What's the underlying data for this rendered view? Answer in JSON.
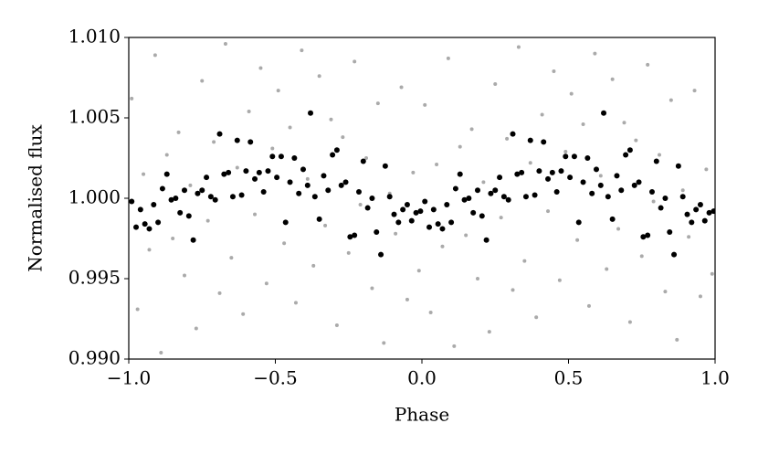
{
  "chart_data": {
    "type": "scatter",
    "xlabel": "Phase",
    "ylabel": "Normalised flux",
    "xlim": [
      -1.0,
      1.0
    ],
    "ylim": [
      0.99,
      1.01
    ],
    "xticks": [
      {
        "value": -1.0,
        "label": "−1.0"
      },
      {
        "value": -0.5,
        "label": "−0.5"
      },
      {
        "value": 0.0,
        "label": "0.0"
      },
      {
        "value": 0.5,
        "label": "0.5"
      },
      {
        "value": 1.0,
        "label": "1.0"
      }
    ],
    "yticks": [
      {
        "value": 0.99,
        "label": "0.990"
      },
      {
        "value": 0.995,
        "label": "0.995"
      },
      {
        "value": 1.0,
        "label": "1.000"
      },
      {
        "value": 1.005,
        "label": "1.005"
      },
      {
        "value": 1.01,
        "label": "1.010"
      }
    ],
    "series": [
      {
        "color": "#aaaaaa",
        "size": 2,
        "x": [
          -0.99,
          -0.97,
          -0.95,
          -0.93,
          -0.91,
          -0.89,
          -0.87,
          -0.85,
          -0.83,
          -0.81,
          -0.79,
          -0.77,
          -0.75,
          -0.73,
          -0.71,
          -0.69,
          -0.67,
          -0.65,
          -0.63,
          -0.61,
          -0.59,
          -0.57,
          -0.55,
          -0.53,
          -0.51,
          -0.49,
          -0.47,
          -0.45,
          -0.43,
          -0.41,
          -0.39,
          -0.37,
          -0.35,
          -0.33,
          -0.31,
          -0.29,
          -0.27,
          -0.25,
          -0.23,
          -0.21,
          -0.19,
          -0.17,
          -0.15,
          -0.13,
          -0.11,
          -0.09,
          -0.07,
          -0.05,
          -0.03,
          -0.01,
          0.01,
          0.03,
          0.05,
          0.07,
          0.09,
          0.11,
          0.13,
          0.15,
          0.17,
          0.19,
          0.21,
          0.23,
          0.25,
          0.27,
          0.29,
          0.31,
          0.33,
          0.35,
          0.37,
          0.39,
          0.41,
          0.43,
          0.45,
          0.47,
          0.49,
          0.51,
          0.53,
          0.55,
          0.57,
          0.59,
          0.61,
          0.63,
          0.65,
          0.67,
          0.69,
          0.71,
          0.73,
          0.75,
          0.77,
          0.79,
          0.81,
          0.83,
          0.85,
          0.87,
          0.89,
          0.91,
          0.93,
          0.95,
          0.97,
          0.99
        ],
        "values": [
          1.0062,
          0.9931,
          1.0015,
          0.9968,
          1.0089,
          0.9904,
          1.0027,
          0.9975,
          1.0041,
          0.9952,
          1.0008,
          0.9919,
          1.0073,
          0.9986,
          1.0035,
          0.9941,
          1.0096,
          0.9963,
          1.0019,
          0.9928,
          1.0054,
          0.999,
          1.0081,
          0.9947,
          1.0031,
          1.0067,
          0.9972,
          1.0044,
          0.9935,
          1.0092,
          1.0012,
          0.9958,
          1.0076,
          0.9983,
          1.0049,
          0.9921,
          1.0038,
          0.9966,
          1.0085,
          0.9996,
          1.0025,
          0.9944,
          1.0059,
          0.991,
          1.0003,
          0.9978,
          1.0069,
          0.9937,
          1.0016,
          0.9955,
          1.0058,
          0.9929,
          1.0021,
          0.997,
          1.0087,
          0.9908,
          1.0032,
          0.9977,
          1.0043,
          0.995,
          1.001,
          0.9917,
          1.0071,
          0.9988,
          1.0037,
          0.9943,
          1.0094,
          0.9961,
          1.0022,
          0.9926,
          1.0052,
          0.9992,
          1.0079,
          0.9949,
          1.0029,
          1.0065,
          0.9974,
          1.0046,
          0.9933,
          1.009,
          1.0014,
          0.9956,
          1.0074,
          0.9981,
          1.0047,
          0.9923,
          1.0036,
          0.9964,
          1.0083,
          0.9998,
          1.0027,
          0.9942,
          1.0061,
          0.9912,
          1.0005,
          0.9976,
          1.0067,
          0.9939,
          1.0018,
          0.9953
        ]
      },
      {
        "color": "#000000",
        "size": 3,
        "x": [
          -0.99,
          -0.975,
          -0.96,
          -0.945,
          -0.93,
          -0.915,
          -0.9,
          -0.885,
          -0.87,
          -0.855,
          -0.84,
          -0.825,
          -0.81,
          -0.795,
          -0.78,
          -0.765,
          -0.75,
          -0.735,
          -0.72,
          -0.705,
          -0.69,
          -0.675,
          -0.66,
          -0.645,
          -0.63,
          -0.615,
          -0.6,
          -0.585,
          -0.57,
          -0.555,
          -0.54,
          -0.525,
          -0.51,
          -0.495,
          -0.48,
          -0.465,
          -0.45,
          -0.435,
          -0.42,
          -0.405,
          -0.39,
          -0.38,
          -0.365,
          -0.35,
          -0.335,
          -0.32,
          -0.305,
          -0.29,
          -0.275,
          -0.26,
          -0.245,
          -0.23,
          -0.215,
          -0.2,
          -0.185,
          -0.17,
          -0.155,
          -0.14,
          -0.125,
          -0.11,
          -0.095,
          -0.08,
          -0.065,
          -0.05,
          -0.035,
          -0.02,
          -0.005,
          0.01,
          0.025,
          0.04,
          0.055,
          0.07,
          0.085,
          0.1,
          0.115,
          0.13,
          0.145,
          0.16,
          0.175,
          0.19,
          0.205,
          0.22,
          0.235,
          0.25,
          0.265,
          0.28,
          0.295,
          0.31,
          0.325,
          0.34,
          0.355,
          0.37,
          0.385,
          0.4,
          0.415,
          0.43,
          0.445,
          0.46,
          0.475,
          0.49,
          0.505,
          0.52,
          0.535,
          0.55,
          0.565,
          0.58,
          0.595,
          0.61,
          0.62,
          0.635,
          0.65,
          0.665,
          0.68,
          0.695,
          0.71,
          0.725,
          0.74,
          0.755,
          0.77,
          0.785,
          0.8,
          0.815,
          0.83,
          0.845,
          0.86,
          0.875,
          0.89,
          0.905,
          0.92,
          0.935,
          0.95,
          0.965,
          0.98,
          0.995
        ],
        "values": [
          0.9998,
          0.9982,
          0.9993,
          0.9984,
          0.9981,
          0.9996,
          0.9985,
          1.0006,
          1.0015,
          0.9999,
          1.0,
          0.9991,
          1.0005,
          0.9989,
          0.9974,
          1.0003,
          1.0005,
          1.0013,
          1.0001,
          0.9999,
          1.004,
          1.0015,
          1.0016,
          1.0001,
          1.0036,
          1.0002,
          1.0017,
          1.0035,
          1.0012,
          1.0016,
          1.0004,
          1.0017,
          1.0026,
          1.0013,
          1.0026,
          0.9985,
          1.001,
          1.0025,
          1.0003,
          1.0018,
          1.0008,
          1.0053,
          1.0001,
          0.9987,
          1.0014,
          1.0005,
          1.0027,
          1.003,
          1.0008,
          1.001,
          0.9976,
          0.9977,
          1.0004,
          1.0023,
          0.9994,
          1.0,
          0.9979,
          0.9965,
          1.002,
          1.0001,
          0.999,
          0.9985,
          0.9993,
          0.9996,
          0.9986,
          0.9991,
          0.9992,
          0.9998,
          0.9982,
          0.9993,
          0.9984,
          0.9981,
          0.9996,
          0.9985,
          1.0006,
          1.0015,
          0.9999,
          1.0,
          0.9991,
          1.0005,
          0.9989,
          0.9974,
          1.0003,
          1.0005,
          1.0013,
          1.0001,
          0.9999,
          1.004,
          1.0015,
          1.0016,
          1.0001,
          1.0036,
          1.0002,
          1.0017,
          1.0035,
          1.0012,
          1.0016,
          1.0004,
          1.0017,
          1.0026,
          1.0013,
          1.0026,
          0.9985,
          1.001,
          1.0025,
          1.0003,
          1.0018,
          1.0008,
          1.0053,
          1.0001,
          0.9987,
          1.0014,
          1.0005,
          1.0027,
          1.003,
          1.0008,
          1.001,
          0.9976,
          0.9977,
          1.0004,
          1.0023,
          0.9994,
          1.0,
          0.9979,
          0.9965,
          1.002,
          1.0001,
          0.999,
          0.9985,
          0.9993,
          0.9996,
          0.9986,
          0.9991,
          0.9992
        ]
      }
    ]
  }
}
